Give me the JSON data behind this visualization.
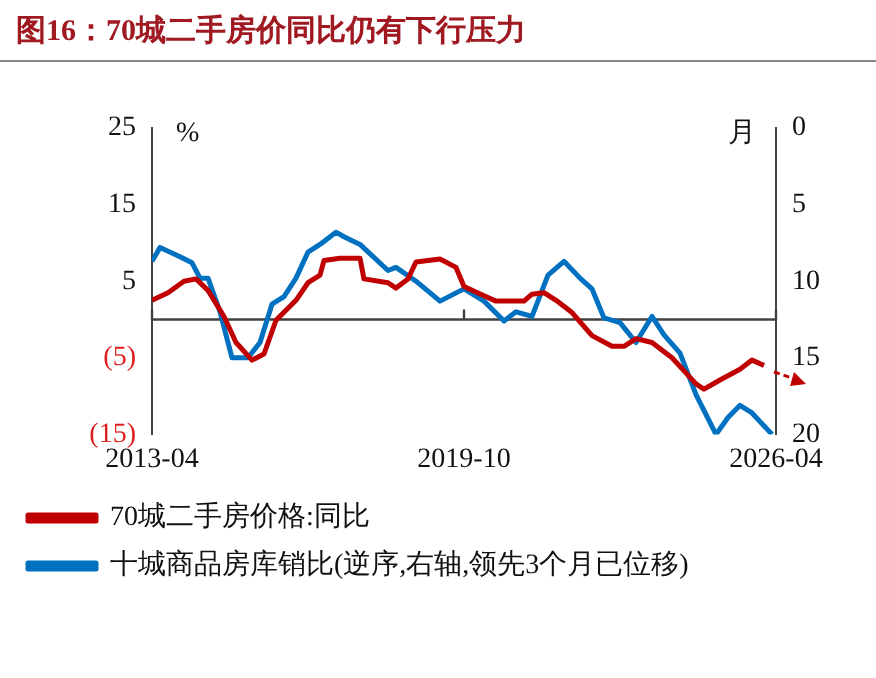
{
  "chart_data": {
    "type": "line",
    "title": "图16：70城二手房价同比仍有下行压力",
    "ylabel": "%",
    "y2label": "月",
    "xlim": [
      "2013-04",
      "2026-04"
    ],
    "xticks": [
      "2013-04",
      "2019-10",
      "2026-04"
    ],
    "ylim": [
      -15,
      25
    ],
    "yticks": [
      {
        "value": -15,
        "label": "(15)"
      },
      {
        "value": -5,
        "label": "(5)"
      },
      5,
      15,
      25
    ],
    "y2lim": [
      20,
      0
    ],
    "y2ticks": [
      20,
      15,
      10,
      5,
      0
    ],
    "legend": "bottom",
    "marker": "none",
    "line_style": "solid",
    "ref_lines": [
      {
        "axis": "y",
        "value": 0,
        "color": "#404040"
      }
    ],
    "series": [
      {
        "name": "70城二手房价格:同比",
        "color": "#c00000",
        "x": [
          "2013-04",
          "2013-08",
          "2013-12",
          "2014-03",
          "2014-06",
          "2014-10",
          "2015-01",
          "2015-05",
          "2015-08",
          "2015-11",
          "2016-04",
          "2016-07",
          "2016-10",
          "2016-11",
          "2017-03",
          "2017-08",
          "2017-09",
          "2018-03",
          "2018-05",
          "2018-08",
          "2018-10",
          "2019-04",
          "2019-08",
          "2019-10",
          "2020-03",
          "2020-06",
          "2021-01",
          "2021-03",
          "2021-06",
          "2021-09",
          "2022-01",
          "2022-06",
          "2022-11",
          "2023-02",
          "2023-05",
          "2023-09",
          "2024-02",
          "2024-08",
          "2024-10",
          "2025-02",
          "2025-07",
          "2025-10",
          "2026-01"
        ],
        "values": [
          2.5,
          3.5,
          5.0,
          5.3,
          3.8,
          0.4,
          -3.0,
          -5.3,
          -4.5,
          -0.1,
          2.5,
          4.8,
          5.8,
          7.7,
          8.0,
          8.0,
          5.3,
          4.8,
          4.1,
          5.3,
          7.5,
          7.9,
          6.8,
          4.3,
          3.1,
          2.4,
          2.4,
          3.3,
          3.5,
          2.5,
          0.9,
          -2.1,
          -3.5,
          -3.5,
          -2.5,
          -3.0,
          -5.0,
          -8.4,
          -9.1,
          -7.9,
          -6.5,
          -5.3,
          -6.0
        ]
      },
      {
        "name": "十城商品房库销比(逆序,右轴,领先3个月已位移)",
        "color": "#0070c0",
        "axis": "y2",
        "x": [
          "2013-04",
          "2013-06",
          "2013-11",
          "2014-02",
          "2014-04",
          "2014-06",
          "2014-09",
          "2014-12",
          "2015-04",
          "2015-07",
          "2015-10",
          "2016-01",
          "2016-04",
          "2016-07",
          "2016-10",
          "2017-02",
          "2017-04",
          "2017-08",
          "2018-03",
          "2018-05",
          "2018-10",
          "2019-04",
          "2019-10",
          "2020-03",
          "2020-08",
          "2020-11",
          "2021-03",
          "2021-07",
          "2021-11",
          "2022-03",
          "2022-06",
          "2022-09",
          "2023-01",
          "2023-05",
          "2023-09",
          "2023-12",
          "2024-04",
          "2024-08",
          "2025-01",
          "2025-04",
          "2025-07",
          "2025-10",
          "2026-03"
        ],
        "values": [
          8.7,
          7.8,
          8.4,
          8.8,
          9.8,
          9.8,
          12.0,
          15.0,
          15.0,
          14.0,
          11.5,
          11.0,
          9.8,
          8.1,
          7.6,
          6.8,
          7.1,
          7.6,
          9.3,
          9.1,
          10.0,
          11.3,
          10.5,
          11.3,
          12.6,
          12.0,
          12.3,
          9.6,
          8.7,
          9.8,
          10.5,
          12.4,
          12.7,
          14.0,
          12.3,
          13.5,
          14.7,
          17.4,
          20.0,
          18.9,
          18.1,
          18.6,
          20.0
        ]
      }
    ]
  }
}
